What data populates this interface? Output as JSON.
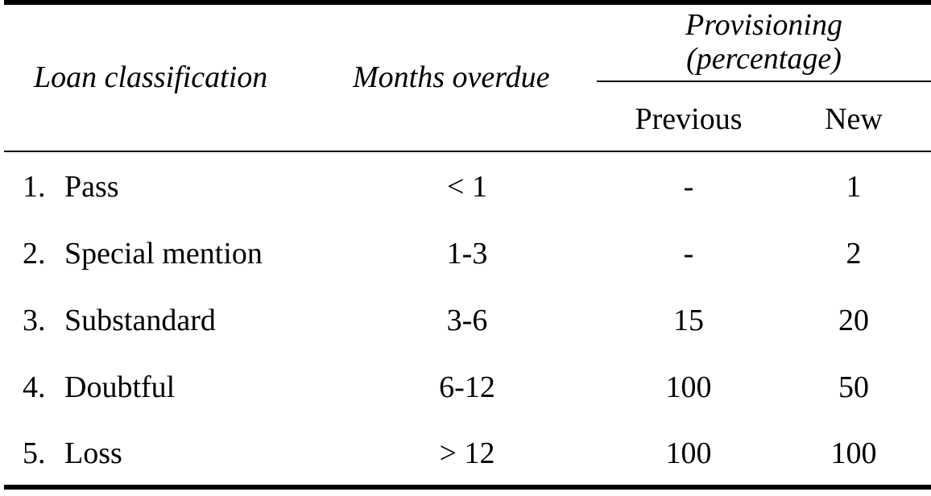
{
  "table": {
    "headers": {
      "loan_classification": "Loan classification",
      "months_overdue": "Months overdue",
      "provisioning_line1": "Provisioning",
      "provisioning_line2": "(percentage)",
      "previous": "Previous",
      "new": "New"
    },
    "rows": [
      {
        "num": "1.",
        "name": "Pass",
        "months": "< 1",
        "previous": "-",
        "new": "1"
      },
      {
        "num": "2.",
        "name": "Special mention",
        "months": "1-3",
        "previous": "-",
        "new": "2"
      },
      {
        "num": "3.",
        "name": "Substandard",
        "months": "3-6",
        "previous": "15",
        "new": "20"
      },
      {
        "num": "4.",
        "name": "Doubtful",
        "months": "6-12",
        "previous": "100",
        "new": "50"
      },
      {
        "num": "5.",
        "name": "Loss",
        "months": "> 12",
        "previous": "100",
        "new": "100"
      }
    ]
  }
}
